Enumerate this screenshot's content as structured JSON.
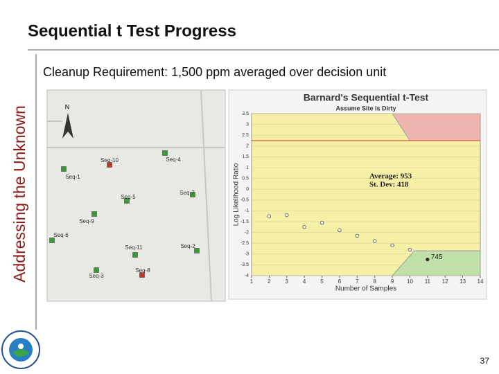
{
  "slide": {
    "title": "Sequential t Test Progress",
    "side_label": "Addressing the Unknown",
    "subtitle": "Cleanup Requirement: 1,500 ppm averaged over decision unit",
    "page_number": "37"
  },
  "map": {
    "north": "N",
    "sites": [
      {
        "label": "Seq-10",
        "color": "#c0392b"
      },
      {
        "label": "Seq-4",
        "color": "#3a9a3a"
      },
      {
        "label": "Seq-1",
        "color": "#3a9a3a"
      },
      {
        "label": "Seq-5",
        "color": "#3a9a3a"
      },
      {
        "label": "Seq-7",
        "color": "#3a9a3a"
      },
      {
        "label": "Seq-9",
        "color": "#3a9a3a"
      },
      {
        "label": "Seq-6",
        "color": "#3a9a3a"
      },
      {
        "label": "Seq-11",
        "color": "#3a9a3a"
      },
      {
        "label": "Seq-2",
        "color": "#3a9a3a"
      },
      {
        "label": "Seq-8",
        "color": "#c0392b"
      },
      {
        "label": "Seq-3",
        "color": "#3a9a3a"
      }
    ]
  },
  "chart_data": {
    "type": "scatter",
    "title": "Barnard's Sequential t-Test",
    "subtitle": "Assume Site is Dirty",
    "xlabel": "Number of Samples",
    "ylabel": "Log Likelihood Ratio",
    "xlim": [
      1,
      14
    ],
    "xticks": [
      1,
      2,
      3,
      4,
      5,
      6,
      7,
      8,
      9,
      10,
      11,
      12,
      13,
      14
    ],
    "ylim": [
      -4,
      3.5
    ],
    "yticks": [
      3.5,
      3,
      2.5,
      2,
      1.5,
      1,
      0.5,
      0,
      -0.5,
      -1,
      -1.5,
      -2,
      -2.5,
      -3,
      -3.5,
      -4
    ],
    "grid": true,
    "threshold": 2.25,
    "upper_boundary": {
      "x": [
        9,
        10,
        14
      ],
      "values": [
        3.5,
        2.25,
        2.25
      ],
      "color": "#f0b4b0"
    },
    "lower_boundary": {
      "x": [
        9,
        10.25,
        14
      ],
      "values": [
        -4,
        -2.85,
        -2.85
      ],
      "color": "#bfe0a8"
    },
    "series": [
      {
        "x": [
          2,
          3,
          4,
          5,
          6,
          7,
          8,
          9,
          10
        ],
        "values": [
          -1.25,
          -1.2,
          -1.75,
          -1.55,
          -1.9,
          -2.15,
          -2.4,
          -2.6,
          -2.8
        ],
        "color": "#ffffff"
      },
      {
        "x": [
          11
        ],
        "values": [
          -3.25
        ],
        "color": "#222222"
      }
    ],
    "annotations": [
      "Average: 953",
      "St. Dev: 418",
      "745"
    ]
  }
}
